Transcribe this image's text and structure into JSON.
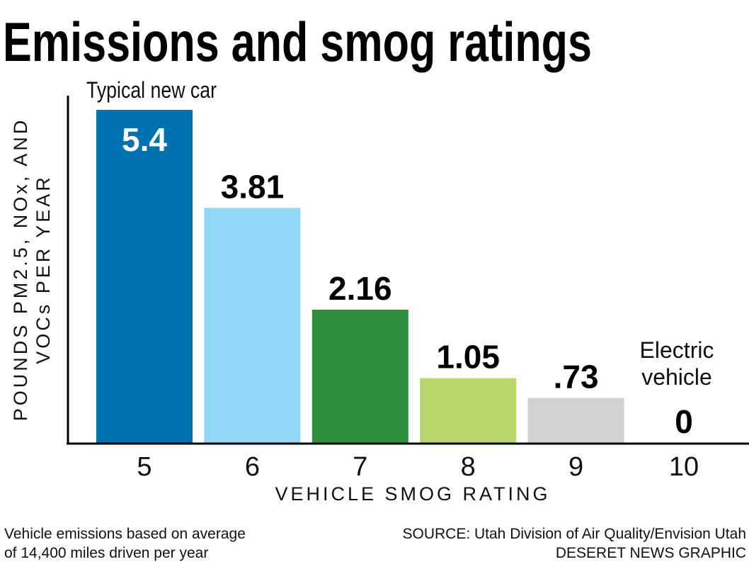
{
  "chart_data": {
    "type": "bar",
    "title": "Emissions and smog ratings",
    "xlabel": "VEHICLE SMOG RATING",
    "ylabel": [
      "POUNDS PM2.5, NOx, AND",
      "VOCs PER YEAR"
    ],
    "categories": [
      "5",
      "6",
      "7",
      "8",
      "9",
      "10"
    ],
    "values": [
      5.4,
      3.81,
      2.16,
      1.05,
      0.73,
      0
    ],
    "value_labels": [
      "5.4",
      "3.81",
      "2.16",
      "1.05",
      ".73",
      "0"
    ],
    "colors": [
      "#0071b1",
      "#91d8f6",
      "#2b8f3b",
      "#b9d76b",
      "#d0d1d3",
      "#ffffff"
    ],
    "value_label_colors": [
      "#ffffff",
      "#000000",
      "#000000",
      "#000000",
      "#000000",
      "#000000"
    ],
    "annotations": {
      "first": "Typical new car",
      "last": [
        "Electric",
        "vehicle"
      ]
    },
    "ylim": [
      0,
      5.4
    ],
    "grid": false
  },
  "footer": {
    "note_lines": [
      "Vehicle emissions based on average",
      "of 14,400 miles driven per year"
    ],
    "source": "SOURCE: Utah Division of Air Quality/Envision Utah",
    "credit": "DESERET NEWS GRAPHIC"
  }
}
